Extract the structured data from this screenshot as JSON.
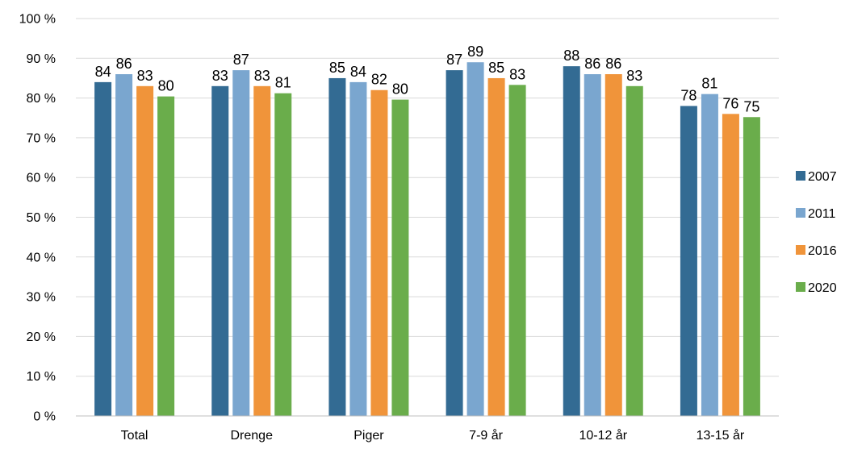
{
  "chart_data": {
    "type": "bar",
    "categories": [
      "Total",
      "Drenge",
      "Piger",
      "7-9 år",
      "10-12 år",
      "13-15 år"
    ],
    "series": [
      {
        "name": "2007",
        "color": "#336b93",
        "values": [
          84,
          83,
          85,
          87,
          88,
          78
        ]
      },
      {
        "name": "2011",
        "color": "#7aa6cf",
        "values": [
          86,
          87,
          84,
          89,
          86,
          81
        ]
      },
      {
        "name": "2016",
        "color": "#f0943a",
        "values": [
          83,
          83,
          82,
          85,
          86,
          76
        ]
      },
      {
        "name": "2020",
        "color": "#6aad4b",
        "values": [
          80.4,
          81.2,
          79.6,
          83.3,
          83,
          75.2
        ]
      }
    ],
    "data_labels": [
      [
        "84",
        "83",
        "85",
        "87",
        "88",
        "78"
      ],
      [
        "86",
        "87",
        "84",
        "89",
        "86",
        "81"
      ],
      [
        "83",
        "83",
        "82",
        "85",
        "86",
        "76"
      ],
      [
        "80",
        "81",
        "80",
        "83",
        "83",
        "75"
      ]
    ],
    "ylim": [
      0,
      100
    ],
    "y_ticks": [
      0,
      10,
      20,
      30,
      40,
      50,
      60,
      70,
      80,
      90,
      100
    ],
    "y_tick_labels": [
      "0 %",
      "10 %",
      "20 %",
      "30 %",
      "40 %",
      "50 %",
      "60 %",
      "70 %",
      "80 %",
      "90 %",
      "100 %"
    ],
    "title": "",
    "xlabel": "",
    "ylabel": "",
    "grid": true,
    "gridline_color": "#d9d9d9",
    "legend_position": "right"
  }
}
